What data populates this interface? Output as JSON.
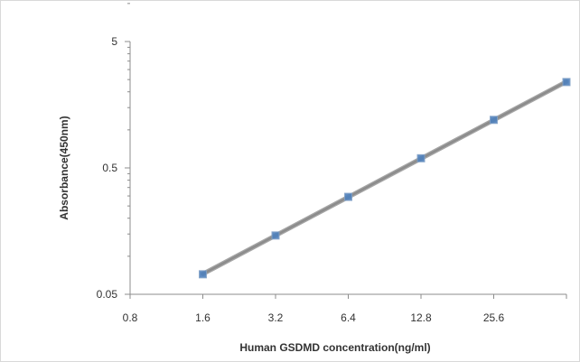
{
  "chart_data": {
    "type": "scatter",
    "title": "",
    "xlabel": "Human GSDMD  concentration(ng/ml)",
    "ylabel": "Absorbance(450nm)",
    "x_scale": "log2",
    "y_scale": "log10",
    "xlim": [
      0.8,
      51.2
    ],
    "ylim": [
      0.05,
      5
    ],
    "x_ticks": [
      "0.8",
      "1.6",
      "3.2",
      "6.4",
      "12.8",
      "25.6"
    ],
    "y_ticks": [
      "5",
      "0.5",
      "0.05"
    ],
    "grid": false,
    "legend": "none",
    "series": [
      {
        "x": [
          1.6,
          3.2,
          6.4,
          12.8,
          25.6,
          51.2
        ],
        "y": [
          0.072,
          0.146,
          0.295,
          0.596,
          1.2,
          2.39
        ],
        "marker": "square",
        "marker_color": "#4f81bd",
        "line": "linear-fit",
        "line_color": "#8c8c8c"
      }
    ]
  }
}
